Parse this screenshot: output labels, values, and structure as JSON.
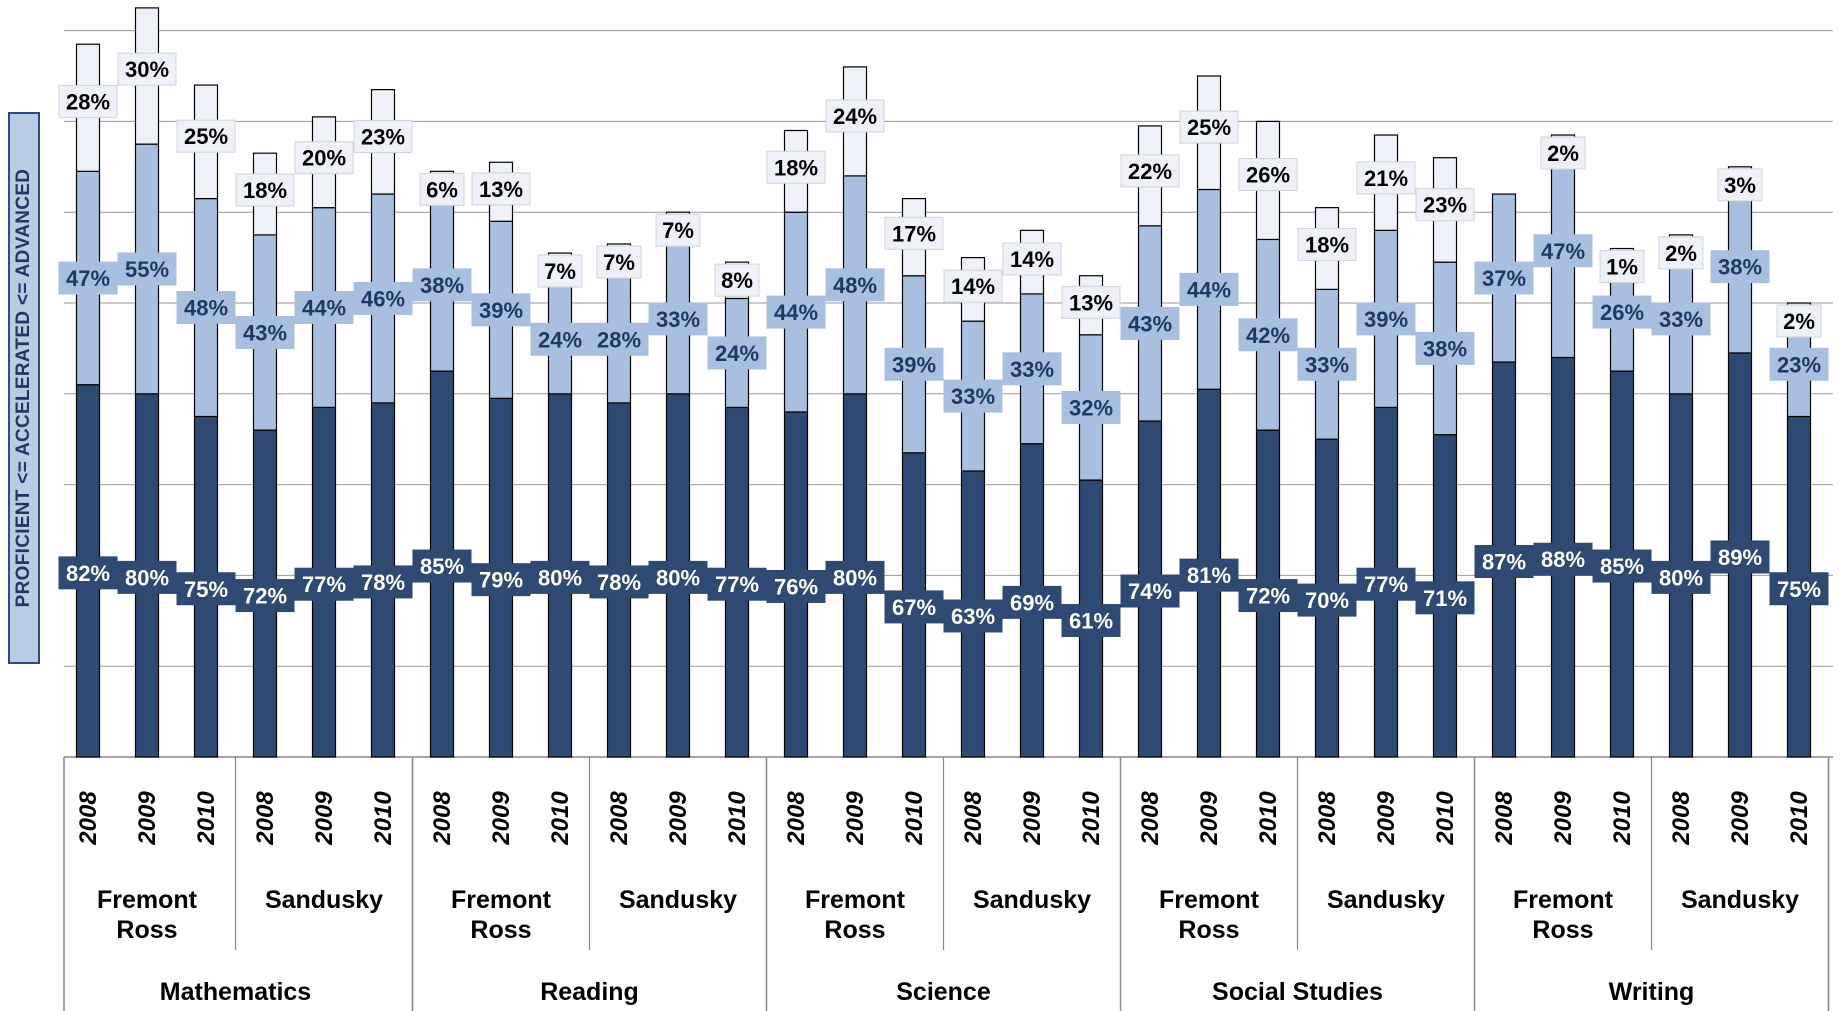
{
  "chart_data": {
    "type": "bar",
    "stacked": true,
    "ylabel": "PROFICIENT <= ACCELERATED <= ADVANCED",
    "grid": true,
    "colors": {
      "proficient": "#2e4a72",
      "accelerated": "#a9bfe0",
      "advanced": "#eef2f8",
      "label_proficient_bg": "#2e4a72",
      "label_accelerated_bg": "#a9bfe0",
      "label_advanced_bg": "#eef2f8",
      "gridline": "#9a9a9a",
      "axis": "#888888"
    },
    "subjects": [
      {
        "name": "Mathematics",
        "schools": [
          {
            "name": "Fremont Ross",
            "bars": [
              {
                "year": "2008",
                "proficient": 82,
                "accelerated": 47,
                "advanced": 28
              },
              {
                "year": "2009",
                "proficient": 80,
                "accelerated": 55,
                "advanced": 30
              },
              {
                "year": "2010",
                "proficient": 75,
                "accelerated": 48,
                "advanced": 25
              }
            ]
          },
          {
            "name": "Sandusky",
            "bars": [
              {
                "year": "2008",
                "proficient": 72,
                "accelerated": 43,
                "advanced": 18
              },
              {
                "year": "2009",
                "proficient": 77,
                "accelerated": 44,
                "advanced": 20
              },
              {
                "year": "2010",
                "proficient": 78,
                "accelerated": 46,
                "advanced": 23
              }
            ]
          }
        ]
      },
      {
        "name": "Reading",
        "schools": [
          {
            "name": "Fremont Ross",
            "bars": [
              {
                "year": "2008",
                "proficient": 85,
                "accelerated": 38,
                "advanced": 6
              },
              {
                "year": "2009",
                "proficient": 79,
                "accelerated": 39,
                "advanced": 13
              },
              {
                "year": "2010",
                "proficient": 80,
                "accelerated": 24,
                "advanced": 7
              }
            ]
          },
          {
            "name": "Sandusky",
            "bars": [
              {
                "year": "2008",
                "proficient": 78,
                "accelerated": 28,
                "advanced": 7
              },
              {
                "year": "2009",
                "proficient": 80,
                "accelerated": 33,
                "advanced": 7
              },
              {
                "year": "2010",
                "proficient": 77,
                "accelerated": 24,
                "advanced": 8
              }
            ]
          }
        ]
      },
      {
        "name": "Science",
        "schools": [
          {
            "name": "Fremont Ross",
            "bars": [
              {
                "year": "2008",
                "proficient": 76,
                "accelerated": 44,
                "advanced": 18
              },
              {
                "year": "2009",
                "proficient": 80,
                "accelerated": 48,
                "advanced": 24
              },
              {
                "year": "2010",
                "proficient": 67,
                "accelerated": 39,
                "advanced": 17
              }
            ]
          },
          {
            "name": "Sandusky",
            "bars": [
              {
                "year": "2008",
                "proficient": 63,
                "accelerated": 33,
                "advanced": 14
              },
              {
                "year": "2009",
                "proficient": 69,
                "accelerated": 33,
                "advanced": 14
              },
              {
                "year": "2010",
                "proficient": 61,
                "accelerated": 32,
                "advanced": 13
              }
            ]
          }
        ]
      },
      {
        "name": "Social Studies",
        "schools": [
          {
            "name": "Fremont Ross",
            "bars": [
              {
                "year": "2008",
                "proficient": 74,
                "accelerated": 43,
                "advanced": 22
              },
              {
                "year": "2009",
                "proficient": 81,
                "accelerated": 44,
                "advanced": 25
              },
              {
                "year": "2010",
                "proficient": 72,
                "accelerated": 42,
                "advanced": 26
              }
            ]
          },
          {
            "name": "Sandusky",
            "bars": [
              {
                "year": "2008",
                "proficient": 70,
                "accelerated": 33,
                "advanced": 18
              },
              {
                "year": "2009",
                "proficient": 77,
                "accelerated": 39,
                "advanced": 21
              },
              {
                "year": "2010",
                "proficient": 71,
                "accelerated": 38,
                "advanced": 23
              }
            ]
          }
        ]
      },
      {
        "name": "Writing",
        "schools": [
          {
            "name": "Fremont Ross",
            "bars": [
              {
                "year": "2008",
                "proficient": 87,
                "accelerated": 37,
                "advanced": null
              },
              {
                "year": "2009",
                "proficient": 88,
                "accelerated": 47,
                "advanced": 2
              },
              {
                "year": "2010",
                "proficient": 85,
                "accelerated": 26,
                "advanced": 1
              }
            ]
          },
          {
            "name": "Sandusky",
            "bars": [
              {
                "year": "2008",
                "proficient": 80,
                "accelerated": 33,
                "advanced": 2
              },
              {
                "year": "2009",
                "proficient": 89,
                "accelerated": 38,
                "advanced": 3
              },
              {
                "year": "2010",
                "proficient": 75,
                "accelerated": 23,
                "advanced": 2
              }
            ]
          }
        ]
      }
    ]
  }
}
